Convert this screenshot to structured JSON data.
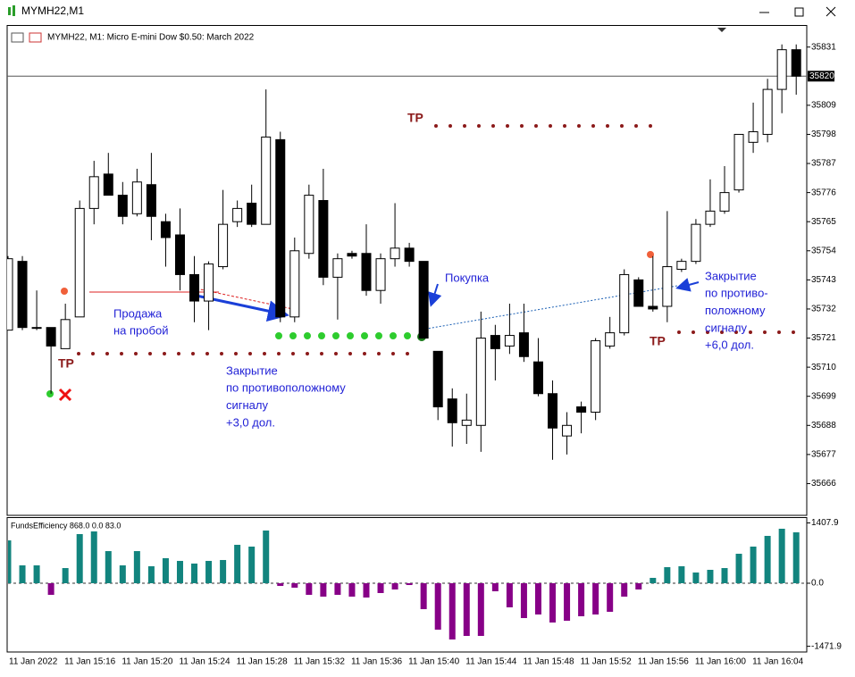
{
  "window": {
    "title": "MYMH22,M1"
  },
  "chart_data": [
    {
      "type": "candlestick",
      "title": "MYMH22, M1:  Micro E-mini Dow $0.50: March 2022",
      "categories": [
        "11 Jan 2022",
        null,
        null,
        null,
        "11 Jan 15:16",
        null,
        null,
        null,
        "11 Jan 15:20",
        null,
        null,
        null,
        "11 Jan 15:24",
        null,
        null,
        null,
        "11 Jan 15:28",
        null,
        null,
        null,
        "11 Jan 15:32",
        null,
        null,
        null,
        "11 Jan 15:36",
        null,
        null,
        null,
        "11 Jan 15:40",
        null,
        null,
        null,
        "11 Jan 15:44",
        null,
        null,
        null,
        "11 Jan 15:48",
        null,
        null,
        null,
        "11 Jan 15:52",
        null,
        null,
        null,
        "11 Jan 15:56",
        null,
        null,
        null,
        "11 Jan 16:00",
        null,
        null,
        null,
        "11 Jan 16:04",
        null,
        null,
        null
      ],
      "open": [
        35724,
        35750,
        35725,
        35725,
        35717,
        35729,
        35770,
        35783,
        35775,
        35768,
        35779,
        35765,
        35760,
        35745,
        35735,
        35748,
        35765,
        35772,
        35764,
        35796,
        35729,
        35753,
        35773,
        35744,
        35753,
        35753,
        35739,
        35751,
        35755,
        35750,
        35716,
        35698,
        35688,
        35688,
        35722,
        35718,
        35723,
        35712,
        35700,
        35684,
        35695,
        35693,
        35718,
        35723,
        35743,
        35733,
        35733,
        35747,
        35750,
        35764,
        35769,
        35777,
        35795,
        35798,
        35815,
        35830
      ],
      "high": [
        35752,
        35752,
        35739,
        35725,
        35734,
        35773,
        35788,
        35791,
        35780,
        35785,
        35791,
        35768,
        35770,
        35752,
        35750,
        35777,
        35773,
        35779,
        35815,
        35799,
        35759,
        35779,
        35785,
        35753,
        35754,
        35764,
        35753,
        35772,
        35757,
        35750,
        35716,
        35702,
        35700,
        35731,
        35726,
        35734,
        35734,
        35721,
        35705,
        35693,
        35697,
        35721,
        35729,
        35747,
        35744,
        35752,
        35769,
        35751,
        35766,
        35781,
        35786,
        35798,
        35810,
        35819,
        35832,
        35832
      ],
      "low": [
        35724,
        35724,
        35724,
        35700,
        35717,
        35729,
        35764,
        35775,
        35764,
        35767,
        35758,
        35748,
        35739,
        35727,
        35724,
        35747,
        35763,
        35763,
        35764,
        35727,
        35727,
        35751,
        35741,
        35728,
        35751,
        35737,
        35734,
        35748,
        35748,
        35721,
        35690,
        35680,
        35681,
        35678,
        35705,
        35715,
        35712,
        35699,
        35675,
        35677,
        35685,
        35690,
        35717,
        35722,
        35733,
        35731,
        35727,
        35746,
        35749,
        35763,
        35768,
        35776,
        35791,
        35795,
        35806,
        35813
      ],
      "close": [
        35751,
        35725,
        35725,
        35718,
        35728,
        35770,
        35782,
        35775,
        35767,
        35780,
        35767,
        35759,
        35745,
        35735,
        35749,
        35764,
        35770,
        35764,
        35797,
        35729,
        35754,
        35775,
        35744,
        35751,
        35752,
        35739,
        35751,
        35755,
        35750,
        35721,
        35695,
        35689,
        35690,
        35721,
        35717,
        35722,
        35714,
        35700,
        35687,
        35688,
        35693,
        35720,
        35723,
        35745,
        35733,
        35732,
        35748,
        35750,
        35764,
        35769,
        35776,
        35798,
        35799,
        35815,
        35830,
        35820
      ],
      "bull_color": "#ffffff",
      "bear_color": "#000000",
      "ylim": [
        35654,
        35839
      ],
      "yticks": [
        35831,
        35809,
        35798,
        35787,
        35776,
        35765,
        35754,
        35743,
        35732,
        35721,
        35710,
        35699,
        35688,
        35677,
        35666
      ],
      "current_price": 35820,
      "annotations": [
        {
          "lines": [
            "Продажа",
            "на пробой"
          ]
        },
        {
          "lines": [
            "Закрытие",
            "по противоположному",
            "сигналу",
            "+3,0 дол."
          ]
        },
        {
          "lines": [
            "Покупка"
          ]
        },
        {
          "lines": [
            "Закрытие",
            "по противо-",
            "положному",
            "сигналу",
            "+6,0 дол."
          ]
        },
        {
          "lines": [
            "TP"
          ]
        },
        {
          "lines": [
            "TP"
          ]
        },
        {
          "lines": [
            "TP"
          ]
        }
      ]
    },
    {
      "type": "bar",
      "title": "FundsEfficiency 868.0 0.0 83.0",
      "values": [
        1000,
        417,
        417,
        -271,
        354,
        1147,
        1209,
        750,
        417,
        750,
        396,
        584,
        521,
        459,
        521,
        542,
        897,
        855,
        1230,
        -63,
        -104,
        -271,
        -313,
        -271,
        -313,
        -334,
        -229,
        -146,
        -42,
        -605,
        -1084,
        -1313,
        -1230,
        -1230,
        -188,
        -563,
        -813,
        -730,
        -917,
        -876,
        -771,
        -730,
        -667,
        -313,
        -146,
        125,
        375,
        396,
        250,
        313,
        354,
        688,
        855,
        1105,
        1272,
        1188
      ],
      "positive_color": "#12847e",
      "negative_color": "#870087",
      "ylim": [
        -1605,
        1543
      ],
      "yticks": [
        1407.9,
        {
          "value": 0,
          "label": "0.0"
        },
        -1471.9
      ]
    }
  ]
}
